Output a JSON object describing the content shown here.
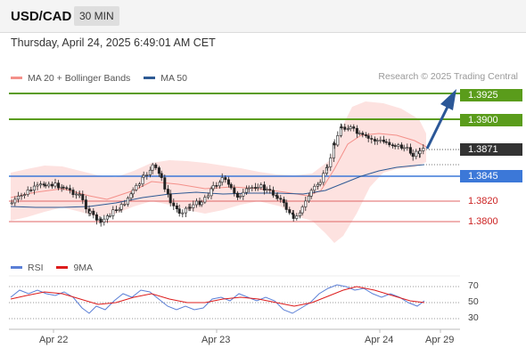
{
  "header": {
    "symbol": "USD/CAD",
    "timeframe": "30 MIN"
  },
  "datetime": "Thursday, April 24, 2025 6:49:01 AM CET",
  "legend": {
    "items": [
      {
        "label": "MA 20 + Bollinger Bands",
        "color": "#f4908a"
      },
      {
        "label": "MA 50",
        "color": "#2e5a94"
      }
    ],
    "credit": "Research © 2025 Trading Central"
  },
  "price_levels": [
    {
      "value": "1.3925",
      "style": "green"
    },
    {
      "value": "1.3900",
      "style": "green"
    },
    {
      "value": "1.3871",
      "style": "dark"
    },
    {
      "value": "1.3845",
      "style": "blue"
    },
    {
      "value": "1.3820",
      "style": "red"
    },
    {
      "value": "1.3800",
      "style": "red"
    }
  ],
  "rsi_panel": {
    "legend": [
      {
        "label": "RSI",
        "color": "#5b7fd6"
      },
      {
        "label": "9MA",
        "color": "#dd1c1c"
      }
    ],
    "levels": [
      "70",
      "50",
      "30"
    ]
  },
  "x_axis": [
    "Apr 22",
    "Apr 23",
    "Apr 24",
    "Apr 29"
  ],
  "colors": {
    "resistance": "#5a9c1b",
    "pivot": "#3c78d8",
    "support": "#e06666",
    "bollinger_fill": "#fde2e0",
    "candle": "#222222",
    "arrow": "#2b5797"
  }
}
